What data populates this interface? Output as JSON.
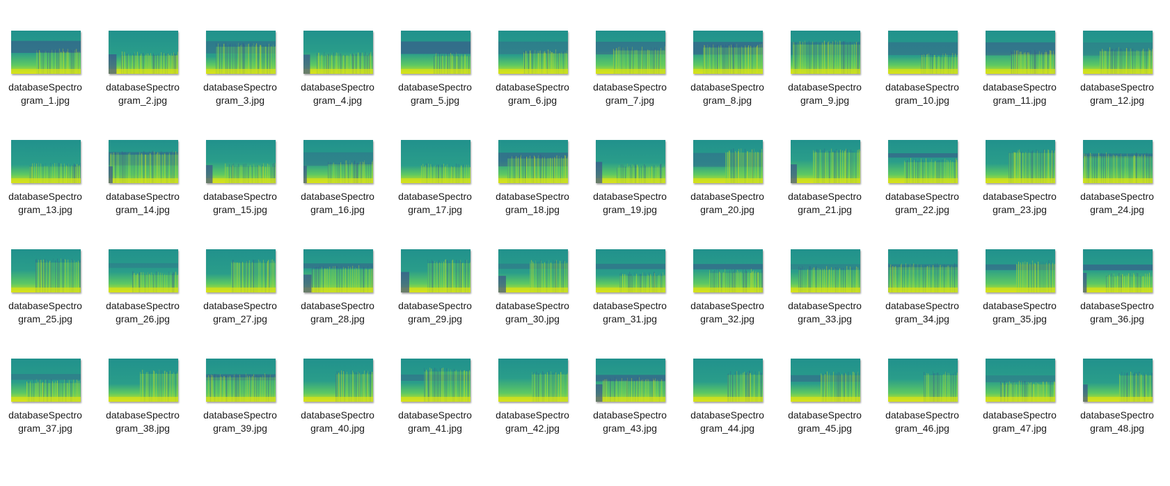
{
  "view": "large-icons",
  "file_icon": "spectrogram-thumbnail-icon",
  "colors": {
    "background": "#ffffff",
    "text": "#1a1a1a",
    "spectrogram_dark": "#3b528b",
    "spectrogram_mid": "#21918c",
    "spectrogram_light": "#5ec962",
    "spectrogram_bright": "#d8e219"
  },
  "files": [
    {
      "line1": "databaseSpectro",
      "line2": "gram_1.jpg"
    },
    {
      "line1": "databaseSpectro",
      "line2": "gram_2.jpg"
    },
    {
      "line1": "databaseSpectro",
      "line2": "gram_3.jpg"
    },
    {
      "line1": "databaseSpectro",
      "line2": "gram_4.jpg"
    },
    {
      "line1": "databaseSpectro",
      "line2": "gram_5.jpg"
    },
    {
      "line1": "databaseSpectro",
      "line2": "gram_6.jpg"
    },
    {
      "line1": "databaseSpectro",
      "line2": "gram_7.jpg"
    },
    {
      "line1": "databaseSpectro",
      "line2": "gram_8.jpg"
    },
    {
      "line1": "databaseSpectro",
      "line2": "gram_9.jpg"
    },
    {
      "line1": "databaseSpectro",
      "line2": "gram_10.jpg"
    },
    {
      "line1": "databaseSpectro",
      "line2": "gram_11.jpg"
    },
    {
      "line1": "databaseSpectro",
      "line2": "gram_12.jpg"
    },
    {
      "line1": "databaseSpectro",
      "line2": "gram_13.jpg"
    },
    {
      "line1": "databaseSpectro",
      "line2": "gram_14.jpg"
    },
    {
      "line1": "databaseSpectro",
      "line2": "gram_15.jpg"
    },
    {
      "line1": "databaseSpectro",
      "line2": "gram_16.jpg"
    },
    {
      "line1": "databaseSpectro",
      "line2": "gram_17.jpg"
    },
    {
      "line1": "databaseSpectro",
      "line2": "gram_18.jpg"
    },
    {
      "line1": "databaseSpectro",
      "line2": "gram_19.jpg"
    },
    {
      "line1": "databaseSpectro",
      "line2": "gram_20.jpg"
    },
    {
      "line1": "databaseSpectro",
      "line2": "gram_21.jpg"
    },
    {
      "line1": "databaseSpectro",
      "line2": "gram_22.jpg"
    },
    {
      "line1": "databaseSpectro",
      "line2": "gram_23.jpg"
    },
    {
      "line1": "databaseSpectro",
      "line2": "gram_24.jpg"
    },
    {
      "line1": "databaseSpectro",
      "line2": "gram_25.jpg"
    },
    {
      "line1": "databaseSpectro",
      "line2": "gram_26.jpg"
    },
    {
      "line1": "databaseSpectro",
      "line2": "gram_27.jpg"
    },
    {
      "line1": "databaseSpectro",
      "line2": "gram_28.jpg"
    },
    {
      "line1": "databaseSpectro",
      "line2": "gram_29.jpg"
    },
    {
      "line1": "databaseSpectro",
      "line2": "gram_30.jpg"
    },
    {
      "line1": "databaseSpectro",
      "line2": "gram_31.jpg"
    },
    {
      "line1": "databaseSpectro",
      "line2": "gram_32.jpg"
    },
    {
      "line1": "databaseSpectro",
      "line2": "gram_33.jpg"
    },
    {
      "line1": "databaseSpectro",
      "line2": "gram_34.jpg"
    },
    {
      "line1": "databaseSpectro",
      "line2": "gram_35.jpg"
    },
    {
      "line1": "databaseSpectro",
      "line2": "gram_36.jpg"
    },
    {
      "line1": "databaseSpectro",
      "line2": "gram_37.jpg"
    },
    {
      "line1": "databaseSpectro",
      "line2": "gram_38.jpg"
    },
    {
      "line1": "databaseSpectro",
      "line2": "gram_39.jpg"
    },
    {
      "line1": "databaseSpectro",
      "line2": "gram_40.jpg"
    },
    {
      "line1": "databaseSpectro",
      "line2": "gram_41.jpg"
    },
    {
      "line1": "databaseSpectro",
      "line2": "gram_42.jpg"
    },
    {
      "line1": "databaseSpectro",
      "line2": "gram_43.jpg"
    },
    {
      "line1": "databaseSpectro",
      "line2": "gram_44.jpg"
    },
    {
      "line1": "databaseSpectro",
      "line2": "gram_45.jpg"
    },
    {
      "line1": "databaseSpectro",
      "line2": "gram_46.jpg"
    },
    {
      "line1": "databaseSpectro",
      "line2": "gram_47.jpg"
    },
    {
      "line1": "databaseSpectro",
      "line2": "gram_48.jpg"
    }
  ]
}
